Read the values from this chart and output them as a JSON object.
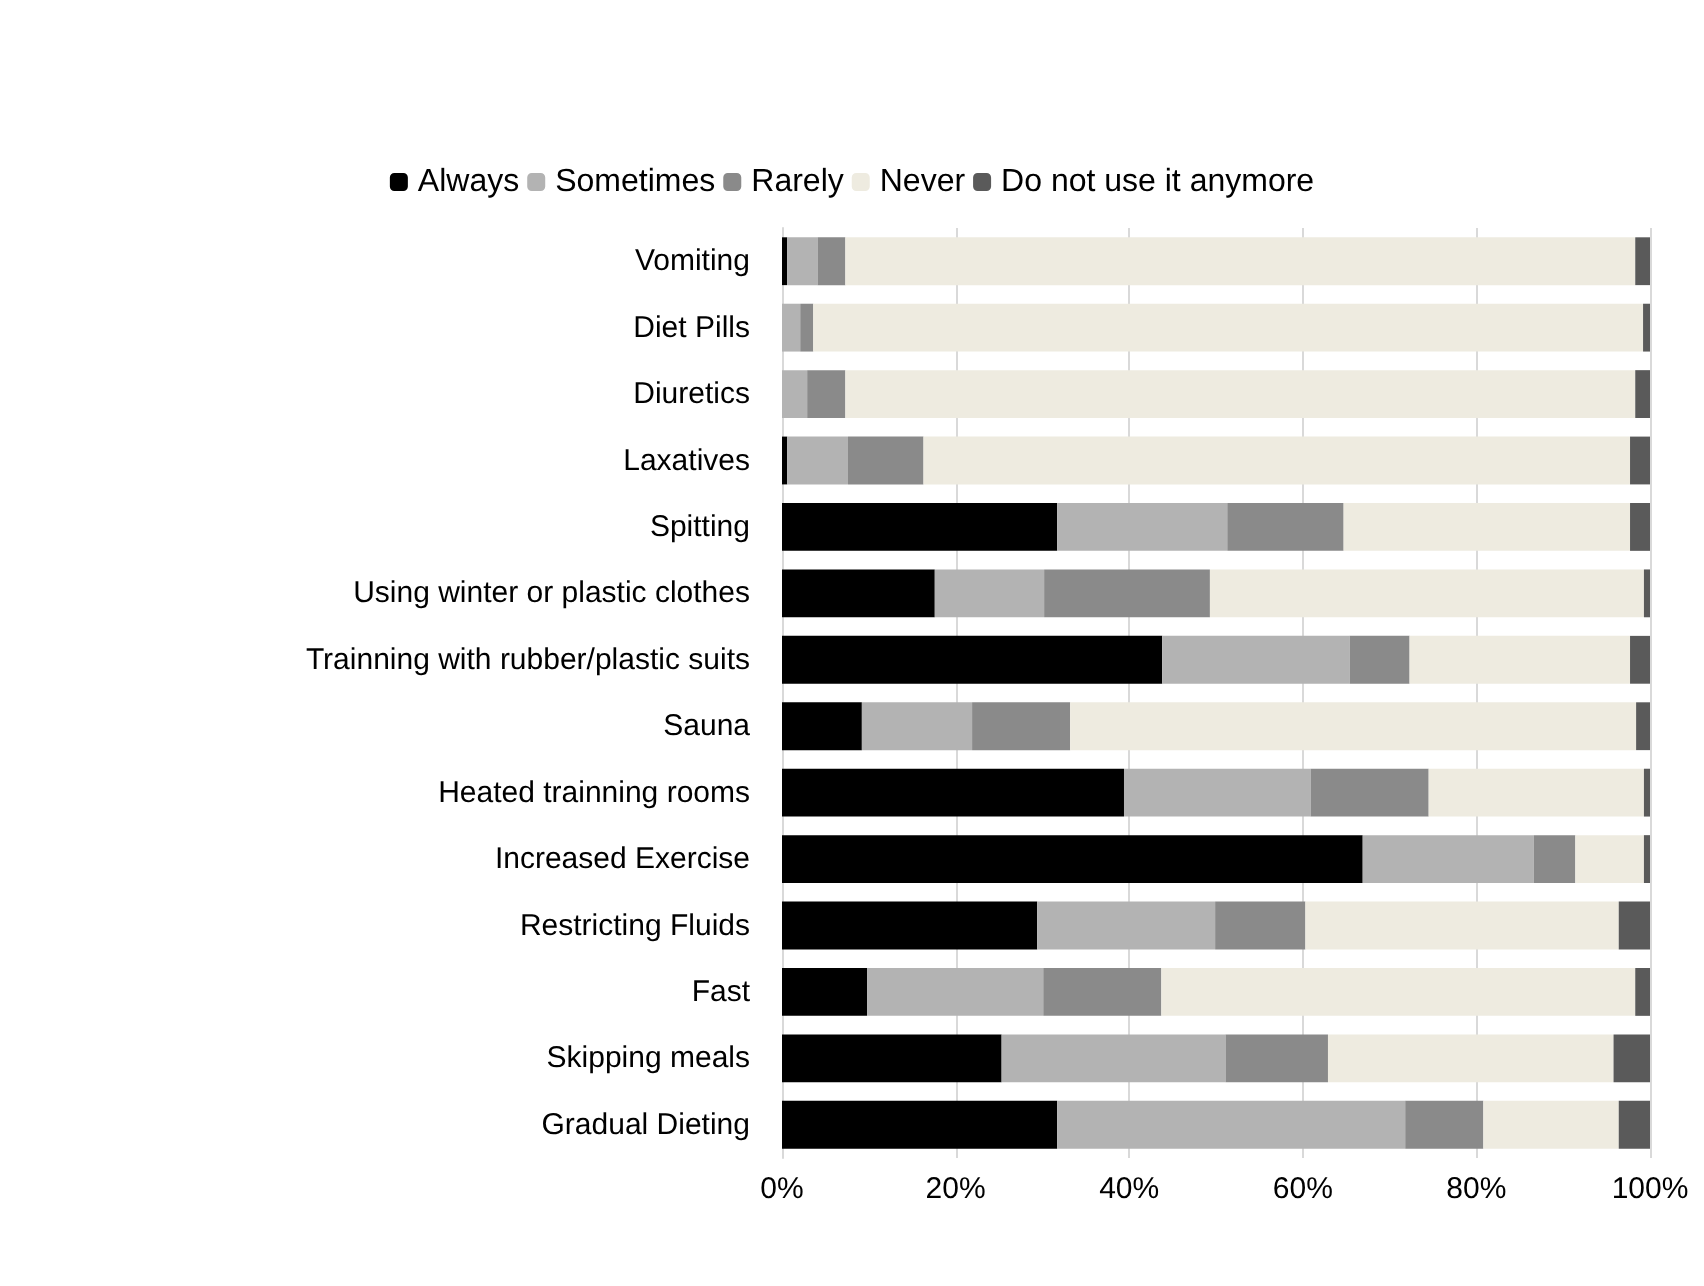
{
  "chart_data": {
    "type": "bar",
    "orientation": "horizontal",
    "stacked": true,
    "categories": [
      "Vomiting",
      "Diet Pills",
      "Diuretics",
      "Laxatives",
      "Spitting",
      "Using winter or plastic clothes",
      "Trainning with rubber/plastic suits",
      "Sauna",
      "Heated trainning rooms",
      "Increased Exercise",
      "Restricting Fluids",
      "Fast",
      "Skipping meals",
      "Gradual Dieting"
    ],
    "series": [
      {
        "name": "Always",
        "color": "#000000",
        "values": [
          0.6,
          0,
          0,
          0.6,
          31.7,
          17.6,
          43.8,
          9.2,
          39.4,
          66.9,
          29.4,
          9.8,
          25.3,
          31.7
        ]
      },
      {
        "name": "Sometimes",
        "color": "#b3b3b3",
        "values": [
          3.5,
          2.1,
          2.9,
          7.0,
          19.6,
          12.6,
          21.6,
          12.7,
          21.5,
          19.7,
          20.5,
          20.3,
          25.8,
          40.1
        ]
      },
      {
        "name": "Rarely",
        "color": "#8a8a8a",
        "values": [
          3.2,
          1.5,
          4.4,
          8.7,
          13.4,
          19.1,
          6.9,
          11.3,
          13.6,
          4.8,
          10.4,
          13.6,
          11.8,
          9.0
        ]
      },
      {
        "name": "Never",
        "color": "#eeebe0",
        "values": [
          91.0,
          95.6,
          91.0,
          81.4,
          33.0,
          50.0,
          25.4,
          65.2,
          24.8,
          7.9,
          36.1,
          54.6,
          32.9,
          15.6
        ]
      },
      {
        "name": "Do not use it anymore",
        "color": "#5a5a5a",
        "values": [
          1.7,
          0.8,
          1.7,
          2.3,
          2.3,
          0.7,
          2.3,
          1.6,
          0.7,
          0.7,
          3.6,
          1.7,
          4.2,
          3.6
        ]
      }
    ],
    "xlim": [
      0,
      100
    ],
    "xticks": [
      {
        "value": 0,
        "label": "0%"
      },
      {
        "value": 20,
        "label": "20%"
      },
      {
        "value": 40,
        "label": "40%"
      },
      {
        "value": 60,
        "label": "60%"
      },
      {
        "value": 80,
        "label": "80%"
      },
      {
        "value": 100,
        "label": "100%"
      }
    ],
    "grid": "x",
    "legend": "top"
  }
}
